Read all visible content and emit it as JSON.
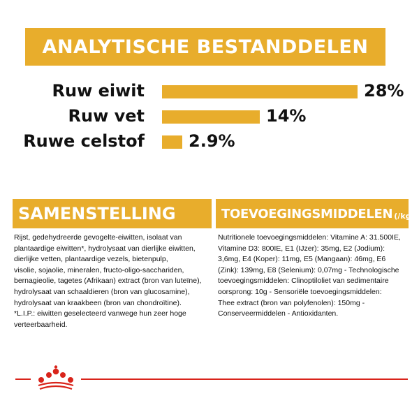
{
  "header": {
    "title": "ANALYTISCHE BESTANDDELEN"
  },
  "chart_data": {
    "type": "bar",
    "orientation": "horizontal",
    "categories": [
      "Ruw eiwit",
      "Ruw vet",
      "Ruwe celstof"
    ],
    "values": [
      28,
      14,
      2.9
    ],
    "value_labels": [
      "28%",
      "14%",
      "2.9%"
    ],
    "unit": "%",
    "bar_color": "#e8ad2c",
    "grid": false,
    "legend": "none"
  },
  "composition": {
    "title": "SAMENSTELLING",
    "lines": [
      "Rijst, gedehydreerde gevogelte-eiwitten, isolaat van",
      "plantaardige eiwitten*, hydrolysaat van dierlijke eiwitten,",
      "dierlijke vetten, plantaardige vezels, bietenpulp,",
      "visolie, sojaolie, mineralen, fructo-oligo-sacchariden,",
      "bernagieolie, tagetes (Afrikaan) extract (bron van luteïne),",
      "hydrolysaat van schaaldieren (bron van glucosamine),",
      "hydrolysaat van kraakbeen (bron van chondroïtine).",
      "*L.I.P.: eiwitten geselecteerd vanwege hun zeer hoge",
      "verteerbaarheid."
    ]
  },
  "additives": {
    "title": "TOEVOEGINGSMIDDELEN",
    "unit": "(/kg)",
    "lines": [
      "Nutritionele toevoegingsmiddelen: Vitamine A: 31.500IE,",
      "Vitamine D3: 800IE, E1 (IJzer): 35mg, E2 (Jodium):",
      "3,6mg, E4 (Koper): 11mg, E5 (Mangaan): 46mg, E6",
      "(Zink): 139mg, E8 (Selenium): 0,07mg - Technologische",
      "toevoegingsmiddelen: Clinoptiloliet van sedimentaire",
      "oorsprong: 10g - Sensoriële toevoegingsmiddelen:",
      "Thee extract (bron van polyfenolen): 150mg -",
      "Conserveermiddelen - Antioxidanten."
    ]
  },
  "footer": {
    "accent_color": "#d9241b",
    "logo": "royal-canin-crown-logo"
  }
}
